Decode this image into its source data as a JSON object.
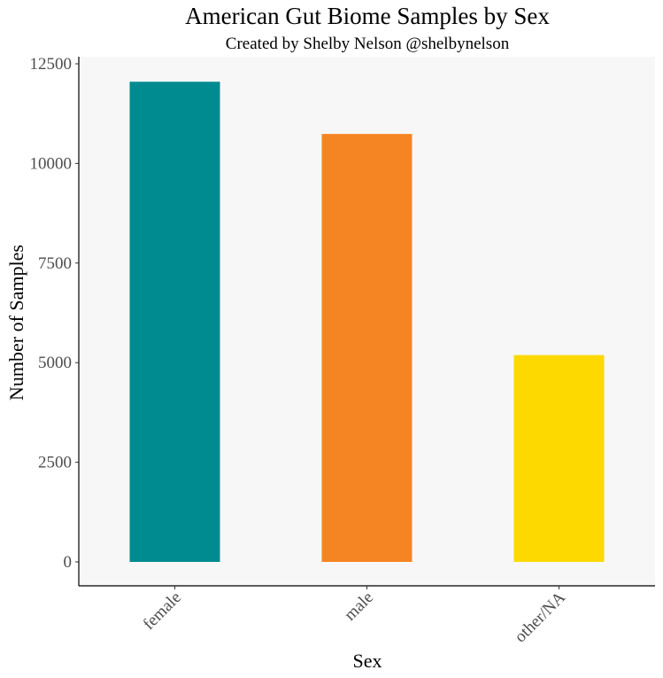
{
  "chart_data": {
    "type": "bar",
    "title": "American Gut Biome Samples by Sex",
    "subtitle": "Created by Shelby Nelson @shelbynelson",
    "xlabel": "Sex",
    "ylabel": "Number of Samples",
    "categories": [
      "female",
      "male",
      "other/NA"
    ],
    "values": [
      12050,
      10740,
      5190
    ],
    "colors": [
      "#008b91",
      "#f58522",
      "#fdd900"
    ],
    "ylim": [
      0,
      12500
    ],
    "yticks": [
      0,
      2500,
      5000,
      7500,
      10000,
      12500
    ],
    "panel_background": "#f7f7f7",
    "grid": false,
    "legend": "none"
  }
}
